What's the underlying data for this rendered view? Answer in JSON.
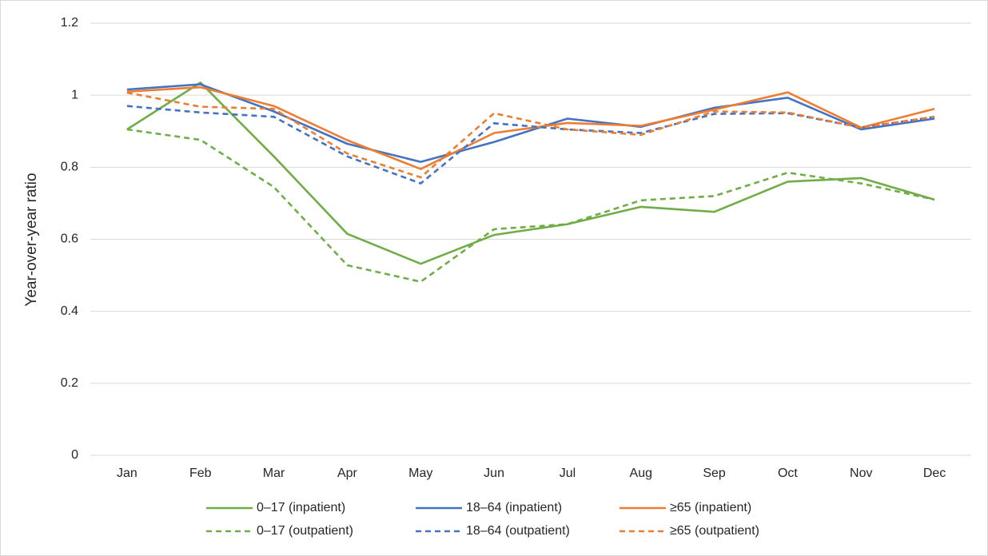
{
  "chart_data": {
    "type": "line",
    "y_label": "Year-over-year ratio",
    "categories": [
      "Jan",
      "Feb",
      "Mar",
      "Apr",
      "May",
      "Jun",
      "Jul",
      "Aug",
      "Sep",
      "Oct",
      "Nov",
      "Dec"
    ],
    "ylim": [
      0,
      1.2
    ],
    "yticks": [
      0,
      0.2,
      0.4,
      0.6,
      0.8,
      1,
      1.2
    ],
    "grid": true,
    "legend": "bottom",
    "series": [
      {
        "name": "0–17 (inpatient)",
        "color": "#70ad47",
        "line_style": "solid",
        "values": [
          0.905,
          1.035,
          0.83,
          0.615,
          0.532,
          0.612,
          0.642,
          0.69,
          0.676,
          0.76,
          0.77,
          0.71
        ]
      },
      {
        "name": "18–64 (inpatient)",
        "color": "#4472c4",
        "line_style": "solid",
        "values": [
          1.016,
          1.03,
          0.955,
          0.865,
          0.815,
          0.87,
          0.935,
          0.912,
          0.965,
          0.993,
          0.905,
          0.935
        ]
      },
      {
        "name": "≥65 (inpatient)",
        "color": "#ed7d31",
        "line_style": "solid",
        "values": [
          1.01,
          1.022,
          0.97,
          0.875,
          0.795,
          0.895,
          0.923,
          0.915,
          0.96,
          1.008,
          0.91,
          0.962
        ]
      },
      {
        "name": "0–17 (outpatient)",
        "color": "#70ad47",
        "line_style": "dashed",
        "values": [
          0.905,
          0.876,
          0.745,
          0.528,
          0.482,
          0.628,
          0.642,
          0.708,
          0.72,
          0.785,
          0.755,
          0.71
        ]
      },
      {
        "name": "18–64 (outpatient)",
        "color": "#4472c4",
        "line_style": "dashed",
        "values": [
          0.97,
          0.952,
          0.94,
          0.83,
          0.755,
          0.922,
          0.905,
          0.895,
          0.948,
          0.95,
          0.91,
          0.94
        ]
      },
      {
        "name": "≥65 (outpatient)",
        "color": "#ed7d31",
        "line_style": "dashed",
        "values": [
          1.007,
          0.968,
          0.962,
          0.838,
          0.772,
          0.95,
          0.905,
          0.89,
          0.955,
          0.952,
          0.91,
          0.94
        ]
      }
    ]
  }
}
